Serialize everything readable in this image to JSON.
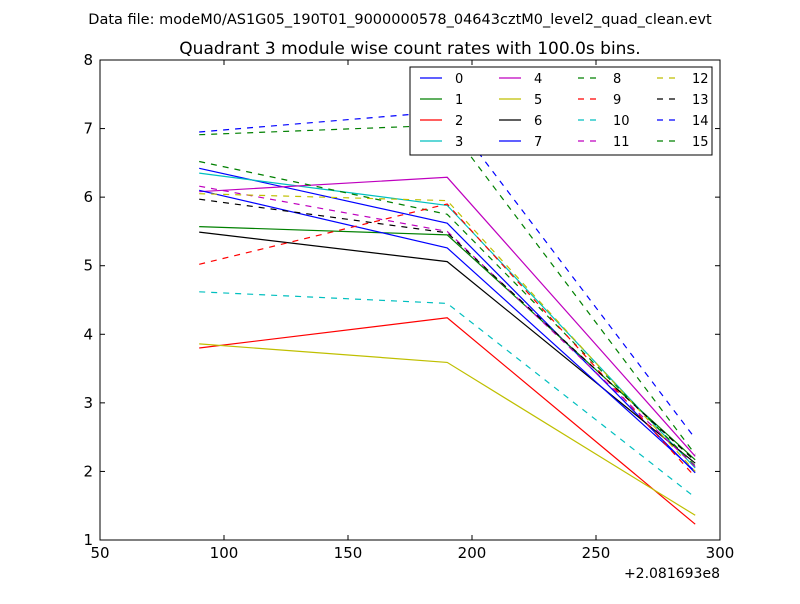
{
  "chart_data": {
    "type": "line",
    "suptitle": "Data file: modeM0/AS1G05_190T01_9000000578_04643cztM0_level2_quad_clean.evt",
    "title": "Quadrant 3 module wise count rates with 100.0s bins.",
    "xlabel": "",
    "ylabel": "",
    "x_offset_label": "+2.081693e8",
    "xlim": [
      50,
      300
    ],
    "ylim": [
      1,
      8
    ],
    "x_ticks": [
      "50",
      "100",
      "150",
      "200",
      "250",
      "300"
    ],
    "y_ticks": [
      "1",
      "2",
      "3",
      "4",
      "5",
      "6",
      "7",
      "8"
    ],
    "x": [
      90,
      190,
      290
    ],
    "legend_position": "top-right",
    "series": [
      {
        "name": "0",
        "color": "#0000ff",
        "dash": "solid",
        "values": [
          6.42,
          5.62,
          1.98
        ]
      },
      {
        "name": "1",
        "color": "#008000",
        "dash": "solid",
        "values": [
          5.57,
          5.45,
          2.17
        ]
      },
      {
        "name": "2",
        "color": "#ff0000",
        "dash": "solid",
        "values": [
          3.8,
          4.24,
          1.23
        ]
      },
      {
        "name": "3",
        "color": "#00bfbf",
        "dash": "solid",
        "values": [
          6.35,
          5.88,
          2.05
        ]
      },
      {
        "name": "4",
        "color": "#bf00bf",
        "dash": "solid",
        "values": [
          6.08,
          6.29,
          2.22
        ]
      },
      {
        "name": "5",
        "color": "#bfbf00",
        "dash": "solid",
        "values": [
          3.86,
          3.59,
          1.36
        ]
      },
      {
        "name": "6",
        "color": "#000000",
        "dash": "solid",
        "values": [
          5.49,
          5.06,
          2.12
        ]
      },
      {
        "name": "7",
        "color": "#0000ff",
        "dash": "solid",
        "values": [
          6.1,
          5.26,
          2.0
        ]
      },
      {
        "name": "8",
        "color": "#008000",
        "dash": "dashed",
        "values": [
          6.52,
          5.75,
          2.08
        ]
      },
      {
        "name": "9",
        "color": "#ff0000",
        "dash": "dashed",
        "values": [
          5.02,
          5.9,
          1.92
        ]
      },
      {
        "name": "10",
        "color": "#00bfbf",
        "dash": "dashed",
        "values": [
          4.62,
          4.45,
          1.62
        ]
      },
      {
        "name": "11",
        "color": "#bf00bf",
        "dash": "dashed",
        "values": [
          6.16,
          5.5,
          2.07
        ]
      },
      {
        "name": "12",
        "color": "#bfbf00",
        "dash": "dashed",
        "values": [
          6.05,
          5.95,
          2.0
        ]
      },
      {
        "name": "13",
        "color": "#000000",
        "dash": "dashed",
        "values": [
          5.97,
          5.48,
          2.15
        ]
      },
      {
        "name": "14",
        "color": "#0000ff",
        "dash": "dashed",
        "values": [
          6.95,
          7.25,
          2.48
        ]
      },
      {
        "name": "15",
        "color": "#008000",
        "dash": "dashed",
        "values": [
          6.91,
          7.05,
          2.25
        ]
      }
    ]
  }
}
